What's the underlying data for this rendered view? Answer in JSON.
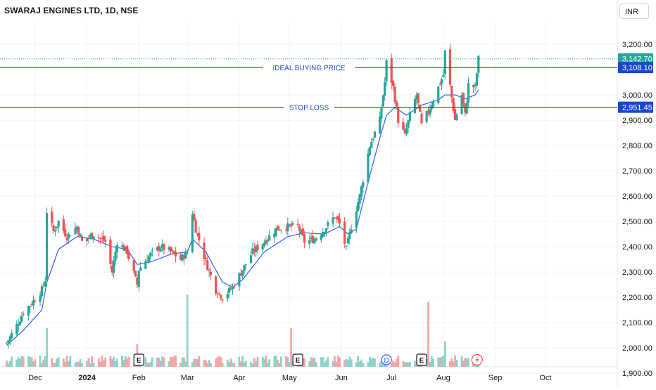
{
  "header": {
    "title": "SWARAJ ENGINES LTD, 1D, NSE",
    "currency": "INR"
  },
  "colors": {
    "up": "#26a69a",
    "down": "#ef5350",
    "ma": "#2962ff",
    "hline": "#1848cc",
    "up_vol": "#8cd3cc",
    "down_vol": "#f5a6a5"
  },
  "chart_data": {
    "type": "candlestick",
    "title": "SWARAJ ENGINES LTD, 1D, NSE",
    "ylim": [
      1900,
      3280
    ],
    "y_ticks": [
      "3,200.00",
      "3,100.00",
      "3,000.00",
      "2,900.00",
      "2,800.00",
      "2,700.00",
      "2,600.00",
      "2,500.00",
      "2,400.00",
      "2,300.00",
      "2,200.00",
      "2,100.00",
      "2,000.00",
      "1,900.00"
    ],
    "x_ticks": [
      "Dec",
      "2024",
      "Feb",
      "Mar",
      "Apr",
      "May",
      "Jun",
      "Jul",
      "Aug",
      "Sep",
      "Oct"
    ],
    "price_path": [
      [
        "2023-11-14",
        2020
      ],
      [
        "2023-11-20",
        2090
      ],
      [
        "2023-11-24",
        2140
      ],
      [
        "2023-11-30",
        2185
      ],
      [
        "2023-12-05",
        2230
      ],
      [
        "2023-12-07",
        2270
      ],
      [
        "2023-12-08",
        2540
      ],
      [
        "2023-12-12",
        2460
      ],
      [
        "2023-12-15",
        2500
      ],
      [
        "2023-12-20",
        2440
      ],
      [
        "2023-12-26",
        2480
      ],
      [
        "2023-12-29",
        2420
      ],
      [
        "2024-01-05",
        2450
      ],
      [
        "2024-01-12",
        2420
      ],
      [
        "2024-01-16",
        2300
      ],
      [
        "2024-01-19",
        2420
      ],
      [
        "2024-01-25",
        2380
      ],
      [
        "2024-01-31",
        2250
      ],
      [
        "2024-02-01",
        2310
      ],
      [
        "2024-02-08",
        2370
      ],
      [
        "2024-02-14",
        2400
      ],
      [
        "2024-02-20",
        2380
      ],
      [
        "2024-02-26",
        2350
      ],
      [
        "2024-03-01",
        2380
      ],
      [
        "2024-03-02",
        2600
      ],
      [
        "2024-03-06",
        2470
      ],
      [
        "2024-03-12",
        2340
      ],
      [
        "2024-03-18",
        2230
      ],
      [
        "2024-03-22",
        2200
      ],
      [
        "2024-03-28",
        2240
      ],
      [
        "2024-04-03",
        2310
      ],
      [
        "2024-04-09",
        2380
      ],
      [
        "2024-04-16",
        2420
      ],
      [
        "2024-04-23",
        2470
      ],
      [
        "2024-04-30",
        2480
      ],
      [
        "2024-05-06",
        2480
      ],
      [
        "2024-05-10",
        2420
      ],
      [
        "2024-05-16",
        2430
      ],
      [
        "2024-05-22",
        2470
      ],
      [
        "2024-05-28",
        2520
      ],
      [
        "2024-05-31",
        2490
      ],
      [
        "2024-06-04",
        2390
      ],
      [
        "2024-06-07",
        2480
      ],
      [
        "2024-06-12",
        2600
      ],
      [
        "2024-06-18",
        2800
      ],
      [
        "2024-06-24",
        2900
      ],
      [
        "2024-06-27",
        3050
      ],
      [
        "2024-06-28",
        3130
      ],
      [
        "2024-07-02",
        3030
      ],
      [
        "2024-07-05",
        2900
      ],
      [
        "2024-07-09",
        2840
      ],
      [
        "2024-07-12",
        2920
      ],
      [
        "2024-07-16",
        3000
      ],
      [
        "2024-07-19",
        2880
      ],
      [
        "2024-07-24",
        2950
      ],
      [
        "2024-07-29",
        3030
      ],
      [
        "2024-08-01",
        3080
      ],
      [
        "2024-08-02",
        3170
      ],
      [
        "2024-08-06",
        2990
      ],
      [
        "2024-08-08",
        2900
      ],
      [
        "2024-08-12",
        3000
      ],
      [
        "2024-08-14",
        2920
      ],
      [
        "2024-08-16",
        3040
      ],
      [
        "2024-08-20",
        3030
      ],
      [
        "2024-08-22",
        3143
      ]
    ],
    "moving_average_path": [
      [
        "2023-11-14",
        2010
      ],
      [
        "2023-11-24",
        2070
      ],
      [
        "2023-12-05",
        2150
      ],
      [
        "2023-12-08",
        2260
      ],
      [
        "2023-12-15",
        2390
      ],
      [
        "2023-12-26",
        2440
      ],
      [
        "2024-01-05",
        2430
      ],
      [
        "2024-01-16",
        2400
      ],
      [
        "2024-01-25",
        2390
      ],
      [
        "2024-01-31",
        2330
      ],
      [
        "2024-02-08",
        2340
      ],
      [
        "2024-02-20",
        2370
      ],
      [
        "2024-03-01",
        2380
      ],
      [
        "2024-03-04",
        2430
      ],
      [
        "2024-03-12",
        2380
      ],
      [
        "2024-03-22",
        2260
      ],
      [
        "2024-03-28",
        2240
      ],
      [
        "2024-04-03",
        2270
      ],
      [
        "2024-04-16",
        2380
      ],
      [
        "2024-04-30",
        2440
      ],
      [
        "2024-05-10",
        2455
      ],
      [
        "2024-05-22",
        2450
      ],
      [
        "2024-05-31",
        2480
      ],
      [
        "2024-06-05",
        2450
      ],
      [
        "2024-06-10",
        2470
      ],
      [
        "2024-06-18",
        2680
      ],
      [
        "2024-06-24",
        2830
      ],
      [
        "2024-06-28",
        2920
      ],
      [
        "2024-07-03",
        2950
      ],
      [
        "2024-07-10",
        2920
      ],
      [
        "2024-07-19",
        2960
      ],
      [
        "2024-07-29",
        2980
      ],
      [
        "2024-08-02",
        3000
      ],
      [
        "2024-08-08",
        3000
      ],
      [
        "2024-08-14",
        2985
      ],
      [
        "2024-08-20",
        3000
      ],
      [
        "2024-08-22",
        3020
      ]
    ],
    "horizontal_lines": [
      {
        "label": "IDEAL BUYING PRICE",
        "price": 3108.1,
        "price_label": "3,108.10"
      },
      {
        "label": "STOP LOSS",
        "price": 2951.45,
        "price_label": "2,951.45"
      }
    ],
    "last_price": {
      "price": 3142.7,
      "label": "3,142.70"
    },
    "event_markers": [
      {
        "date": "2024-02-01",
        "label": "E"
      },
      {
        "date": "2024-05-06",
        "label": "E"
      },
      {
        "date": "2024-06-28",
        "label": "D"
      },
      {
        "date": "2024-07-19",
        "label": "E"
      }
    ],
    "volume_spikes": [
      {
        "date": "2023-12-08",
        "value": 0.44
      },
      {
        "date": "2024-01-31",
        "value": 0.26
      },
      {
        "date": "2024-03-01",
        "value": 0.82
      },
      {
        "date": "2024-05-02",
        "value": 0.44
      },
      {
        "date": "2024-07-23",
        "value": 0.74
      },
      {
        "date": "2024-08-02",
        "value": 0.29
      }
    ]
  }
}
